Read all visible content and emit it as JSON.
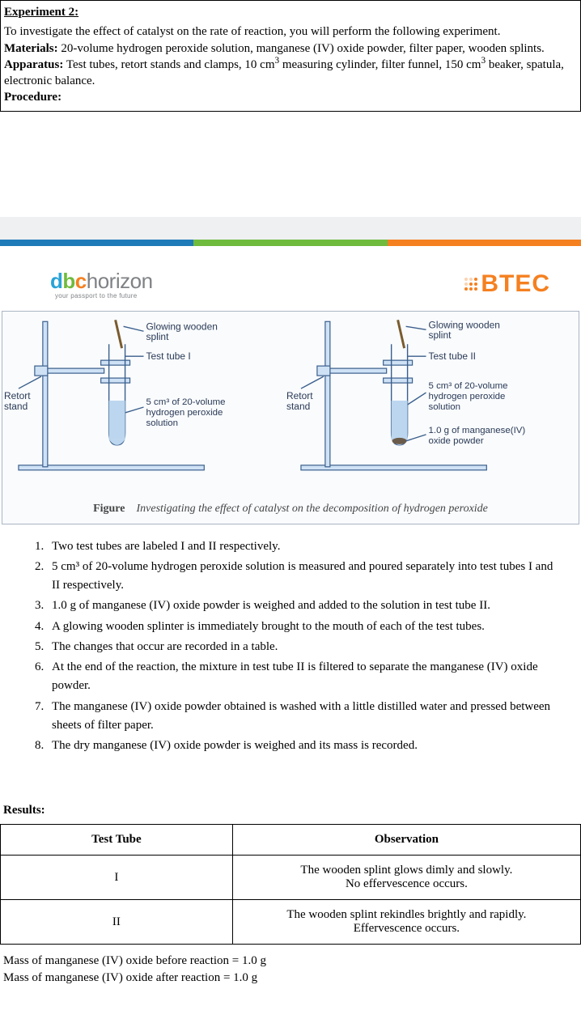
{
  "top": {
    "title": "Experiment 2:",
    "intro": "To investigate the effect of catalyst on the rate of reaction, you will perform the following experiment.",
    "materials_label": "Materials:",
    "materials_text": " 20-volume hydrogen peroxide solution, manganese (IV) oxide powder, filter paper, wooden splints.",
    "apparatus_label": "Apparatus:",
    "apparatus_text": " Test tubes, retort stands and clamps, 10 cm",
    "apparatus_text2": " measuring cylinder, filter funnel, 150 cm",
    "apparatus_text3": " beaker, spatula, electronic balance.",
    "procedure_label": "Procedure:"
  },
  "bar_colors": {
    "c1": "#1e7bb8",
    "c2": "#6fbb3e",
    "c3": "#f58020"
  },
  "logos": {
    "dbc_tag": "your passport to the future",
    "btec": "BTEC"
  },
  "diagram": {
    "retort": "Retort",
    "stand": "stand",
    "glowing": "Glowing wooden",
    "splint": "splint",
    "tube1": "Test tube I",
    "tube2": "Test tube II",
    "sol1a": "5 cm³ of 20-volume",
    "sol1b": "hydrogen peroxide",
    "sol1c": "solution",
    "mn1": "1.0 g of manganese(IV)",
    "mn2": "oxide powder",
    "caption_b": "Figure",
    "caption_i": "Investigating the effect of catalyst on the decomposition of hydrogen peroxide"
  },
  "steps": [
    "Two test tubes are labeled I and II respectively.",
    "5 cm³ of 20-volume hydrogen peroxide solution is measured and poured separately into test tubes I and II respectively.",
    "1.0 g of manganese (IV) oxide powder is weighed and added to the solution in test tube II.",
    "A glowing wooden splinter is immediately brought to the mouth of each of the test tubes.",
    "The changes that occur are recorded in a table.",
    "At the end of the reaction, the mixture in test tube II is filtered to separate the manganese (IV) oxide powder.",
    "The manganese (IV) oxide powder obtained is washed with a little distilled water and pressed between sheets of filter paper.",
    "The dry manganese (IV) oxide powder is weighed and its mass is recorded."
  ],
  "results": {
    "heading": "Results:",
    "col1": "Test Tube",
    "col2": "Observation",
    "rows": [
      {
        "t": "I",
        "o1": "The wooden splint glows dimly and slowly.",
        "o2": "No effervescence occurs."
      },
      {
        "t": "II",
        "o1": "The wooden splint rekindles brightly and rapidly.",
        "o2": "Effervescence occurs."
      }
    ],
    "mass1": "Mass of manganese (IV) oxide before reaction = 1.0 g",
    "mass2": "Mass of manganese (IV) oxide after reaction = 1.0 g"
  }
}
